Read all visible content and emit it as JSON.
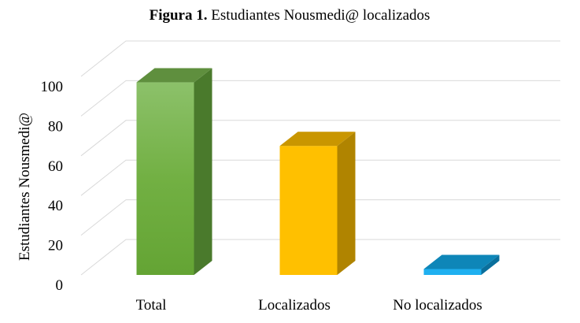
{
  "chart_data": {
    "type": "bar",
    "title_bold": "Figura 1.",
    "title_rest": " Estudiantes Nousmedi@ localizados",
    "xlabel": "",
    "ylabel": "Estudiantes Nousmedi@",
    "ylim": [
      0,
      100
    ],
    "yticks": [
      0,
      20,
      40,
      60,
      80,
      100
    ],
    "grid": true,
    "legend": "none",
    "categories": [
      "Total",
      "Localizados",
      "No localizados"
    ],
    "values": [
      97,
      65,
      3
    ],
    "colors": {
      "Total": {
        "front": "#70ad47",
        "side": "#4a7a2c",
        "top": "#5f8f3e"
      },
      "Localizados": {
        "front": "#ffc000",
        "side": "#b08400",
        "top": "#c99600"
      },
      "No localizados": {
        "front": "#1fb0f0",
        "side": "#0a6f9c",
        "top": "#0e86b8"
      }
    }
  }
}
